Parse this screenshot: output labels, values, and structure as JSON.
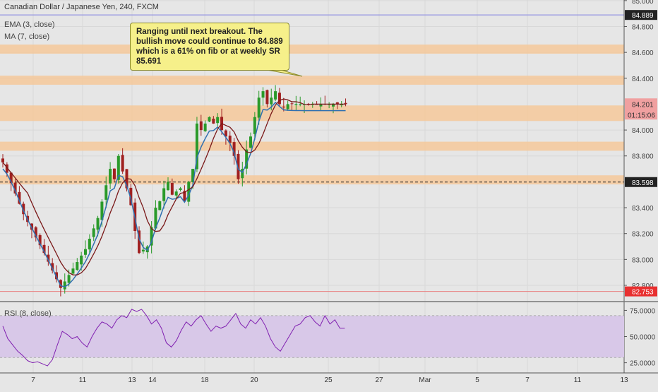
{
  "header": {
    "symbol": "Canadian Dollar / Japanese Yen, 240, FXCM",
    "indicator_1": "EMA (3, close)",
    "indicator_2": "MA (7, close)"
  },
  "annotation": {
    "text": "Ranging until next breakout. The bullish move could continue to 84.889 which is a 61% on fib or at weekly SR 85.691"
  },
  "price_axis": {
    "ticks": [
      "85.000",
      "84.800",
      "84.600",
      "84.400",
      "84.000",
      "83.800",
      "83.400",
      "83.200",
      "83.000",
      "82.800"
    ],
    "tick_values": [
      85.0,
      84.8,
      84.6,
      84.4,
      84.0,
      83.8,
      83.4,
      83.2,
      83.0,
      82.8
    ],
    "badge_top": "84.889",
    "badge_current": "84.201",
    "badge_timer": "01:15:06",
    "badge_dashed": "83.598",
    "badge_low": "82.753"
  },
  "rsi": {
    "label": "RSI (8, close)",
    "ticks": [
      "75.0000",
      "50.0000",
      "25.0000"
    ],
    "tick_values": [
      75,
      50,
      25
    ],
    "band": [
      30,
      70
    ]
  },
  "x_axis": {
    "labels": [
      "7",
      "11",
      "13",
      "14",
      "18",
      "20",
      "25",
      "27",
      "Mar",
      "5",
      "7",
      "11",
      "13"
    ]
  },
  "colors": {
    "background": "#e6e6e6",
    "zone": "#f5c89a",
    "blue_line": "#8080e0",
    "red_line": "#e88080",
    "badge_red": "#e83030",
    "badge_pink": "#f0a0a0",
    "badge_dark": "#222222",
    "up": "#2a9a2a",
    "down": "#a02020",
    "ema": "#3070b0",
    "ma": "#7a1818",
    "rsi": "#8020b0",
    "rsi_band": "#d8c8e8"
  },
  "chart_data": {
    "type": "candlestick",
    "title": "Canadian Dollar / Japanese Yen, 240, FXCM",
    "y_range": [
      82.73,
      85.05
    ],
    "horizontal_levels": {
      "blue": 84.889,
      "red": 82.753,
      "dashed": 83.598
    },
    "zones": [
      [
        84.59,
        84.66
      ],
      [
        84.35,
        84.42
      ],
      [
        84.07,
        84.19
      ],
      [
        83.84,
        83.91
      ],
      [
        83.58,
        83.65
      ]
    ],
    "close_path_x": [
      0,
      5,
      10,
      14,
      20,
      23,
      26,
      27,
      28,
      29,
      30,
      31,
      32,
      33,
      35,
      36,
      37,
      38,
      39,
      40,
      41,
      43,
      44,
      45,
      46,
      47,
      48,
      50,
      51,
      52,
      53,
      54,
      55,
      56,
      57,
      58,
      59,
      60,
      61,
      62,
      63,
      64,
      65,
      66,
      67,
      68,
      69,
      70,
      71,
      72,
      73,
      74,
      75,
      76,
      77,
      78,
      79,
      80,
      82,
      83
    ],
    "close_path_y": [
      83.75,
      83.35,
      83.05,
      82.78,
      83.08,
      83.32,
      83.7,
      83.62,
      83.8,
      83.68,
      83.55,
      83.42,
      83.22,
      83.05,
      83.1,
      83.25,
      83.4,
      83.45,
      83.55,
      83.6,
      83.5,
      83.55,
      83.45,
      83.6,
      83.7,
      84.05,
      84.0,
      84.1,
      84.05,
      84.1,
      84.0,
      83.95,
      83.9,
      83.8,
      83.62,
      83.7,
      83.85,
      83.95,
      84.1,
      84.25,
      84.3,
      84.2,
      84.25,
      84.3,
      84.2,
      84.18,
      84.2,
      84.2,
      84.2,
      84.2,
      84.2,
      84.2,
      84.2,
      84.2,
      84.2,
      84.2,
      84.2,
      84.2,
      84.2,
      84.2
    ],
    "rsi_values": [
      60,
      48,
      42,
      36,
      32,
      27,
      25,
      26,
      24,
      22,
      28,
      42,
      55,
      52,
      48,
      50,
      44,
      40,
      50,
      58,
      64,
      62,
      58,
      66,
      70,
      68,
      76,
      74,
      76,
      70,
      62,
      66,
      58,
      44,
      40,
      46,
      56,
      64,
      60,
      66,
      70,
      62,
      55,
      60,
      58,
      60,
      66,
      72,
      62,
      58,
      66,
      62,
      68,
      60,
      48,
      40,
      36,
      44,
      52,
      60,
      62,
      68,
      70,
      64,
      60,
      70,
      62,
      66,
      58,
      58
    ]
  }
}
